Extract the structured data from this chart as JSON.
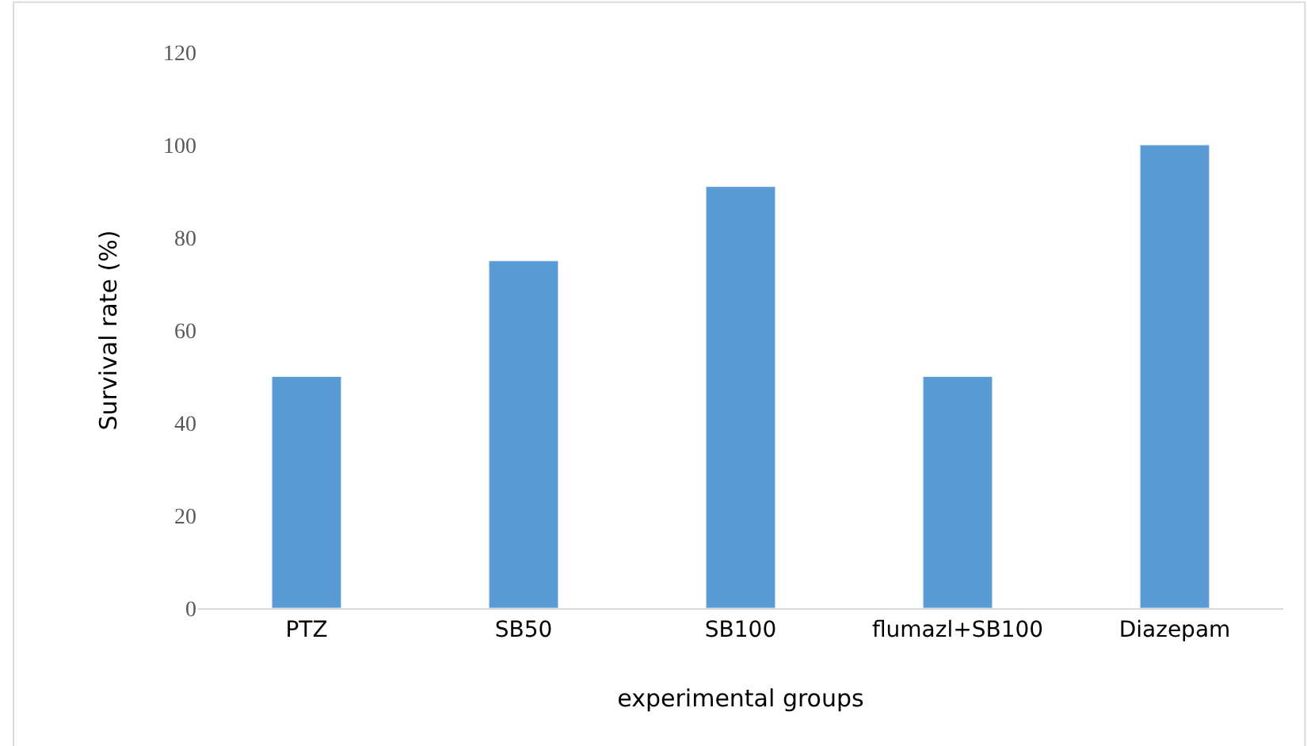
{
  "chart_data": {
    "type": "bar",
    "xlabel": "experimental groups",
    "ylabel": "Survival rate (%)",
    "categories": [
      "PTZ",
      "SB50",
      "SB100",
      "flumazl+SB100",
      "Diazepam"
    ],
    "values": [
      50,
      75,
      91,
      50,
      100
    ],
    "color": "#5b9bd5",
    "ylim": [
      0,
      120
    ],
    "yticks": [
      0,
      20,
      40,
      60,
      80,
      100,
      120
    ],
    "grid": false
  }
}
